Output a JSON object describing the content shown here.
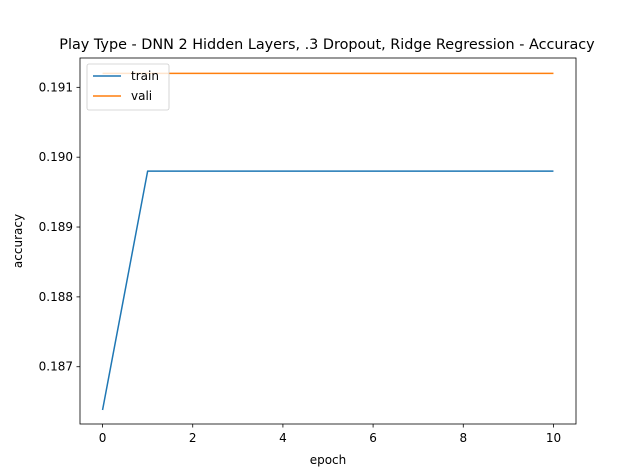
{
  "chart_data": {
    "type": "line",
    "title": "Play Type - DNN 2 Hidden Layers, .3 Dropout, Ridge Regression - Accuracy",
    "xlabel": "epoch",
    "ylabel": "accuracy",
    "x": [
      0,
      1,
      2,
      3,
      4,
      5,
      6,
      7,
      8,
      9,
      10
    ],
    "xlim": [
      -0.5,
      10.5
    ],
    "ylim": [
      0.18618,
      0.19142
    ],
    "xticks": [
      0,
      2,
      4,
      6,
      8,
      10
    ],
    "xtick_labels": [
      "0",
      "2",
      "4",
      "6",
      "8",
      "10"
    ],
    "yticks": [
      0.187,
      0.188,
      0.189,
      0.19,
      0.191
    ],
    "ytick_labels": [
      "0.187",
      "0.188",
      "0.189",
      "0.190",
      "0.191"
    ],
    "grid": false,
    "legend_position": "top-left",
    "series": [
      {
        "name": "train",
        "color": "#1f77b4",
        "values": [
          0.18638,
          0.1898,
          0.1898,
          0.1898,
          0.1898,
          0.1898,
          0.1898,
          0.1898,
          0.1898,
          0.1898,
          0.1898
        ]
      },
      {
        "name": "vali",
        "color": "#ff7f0e",
        "values": [
          0.1912,
          0.1912,
          0.1912,
          0.1912,
          0.1912,
          0.1912,
          0.1912,
          0.1912,
          0.1912,
          0.1912,
          0.1912
        ]
      }
    ]
  }
}
